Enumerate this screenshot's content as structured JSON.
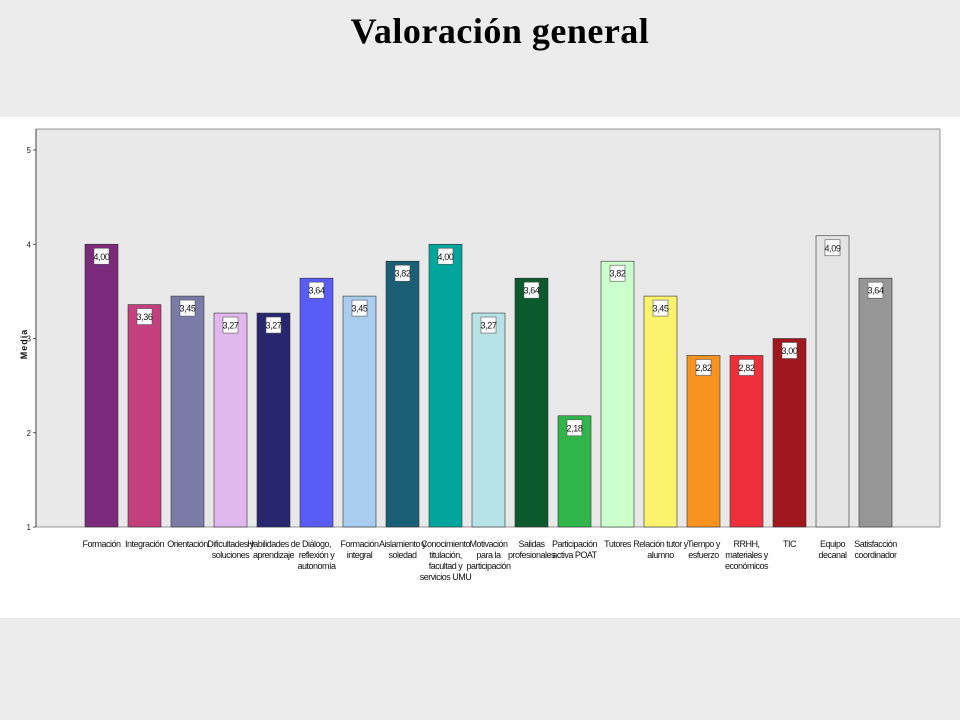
{
  "slide": {
    "title": "Valoración general"
  },
  "chart_data": {
    "type": "bar",
    "ylabel": "Media",
    "xlabel": "",
    "ylim": [
      1,
      5
    ],
    "yticks": [
      1,
      2,
      3,
      4,
      5
    ],
    "grid": false,
    "categories": [
      "Formación",
      "Integración",
      "Orientación",
      "Dificultades y soluciones",
      "Habilidades de aprendizaje",
      "Diálogo, reflexión y autonomía",
      "Formación integral",
      "Aislamiento y soledad",
      "Conocimiento titulación, facultad y servicios UMU",
      "Motivación para la participación",
      "Salidas profesionales",
      "Participación activa POAT",
      "Tutores",
      "Relación tutor y alumno",
      "Tiempo y esfuerzo",
      "RRHH, materiales y económicos",
      "TIC",
      "Equipo decanal",
      "Satisfacción coordinador"
    ],
    "category_lines": [
      [
        "Formación"
      ],
      [
        "Integración"
      ],
      [
        "Orientación"
      ],
      [
        "Dificultades y",
        "soluciones"
      ],
      [
        "Habilidades de",
        "aprendizaje"
      ],
      [
        "Diálogo,",
        "reflexión y",
        "autonomía"
      ],
      [
        "Formación",
        "integral"
      ],
      [
        "Aislamiento y",
        "soledad"
      ],
      [
        "Conocimiento",
        "titulación,",
        "facultad y",
        "servicios UMU"
      ],
      [
        "Motivación",
        "para la",
        "participación"
      ],
      [
        "Salidas",
        "profesionales"
      ],
      [
        "Participación",
        "activa POAT"
      ],
      [
        "Tutores"
      ],
      [
        "Relación tutor y",
        "alumno"
      ],
      [
        "Tiempo y",
        "esfuerzo"
      ],
      [
        "RRHH,",
        "materiales y",
        "económicos"
      ],
      [
        "TIC"
      ],
      [
        "Equipo",
        "decanal"
      ],
      [
        "Satisfacción",
        "coordinador"
      ]
    ],
    "values": [
      4.0,
      3.36,
      3.45,
      3.27,
      3.27,
      3.64,
      3.45,
      3.82,
      4.0,
      3.27,
      3.64,
      2.18,
      3.82,
      3.45,
      2.82,
      2.82,
      3.0,
      4.09,
      3.64
    ],
    "value_labels": [
      "4,00",
      "3,36",
      "3,45",
      "3,27",
      "3,27",
      "3,64",
      "3,45",
      "3,82",
      "4,00",
      "3,27",
      "3,64",
      "2,18",
      "3,82",
      "3,45",
      "2,82",
      "2,82",
      "3,00",
      "4,09",
      "3,64"
    ],
    "colors": [
      "#7b2a7c",
      "#c33f7d",
      "#7b7ba8",
      "#e0b8ee",
      "#27266e",
      "#5a5cf7",
      "#a9cdee",
      "#1a5f76",
      "#00a69c",
      "#b7e3e8",
      "#0b5a2e",
      "#2fb54a",
      "#cbffcc",
      "#fbf36b",
      "#f7931e",
      "#ed2f3b",
      "#a0181e",
      "#e4e4e4",
      "#979797"
    ]
  }
}
